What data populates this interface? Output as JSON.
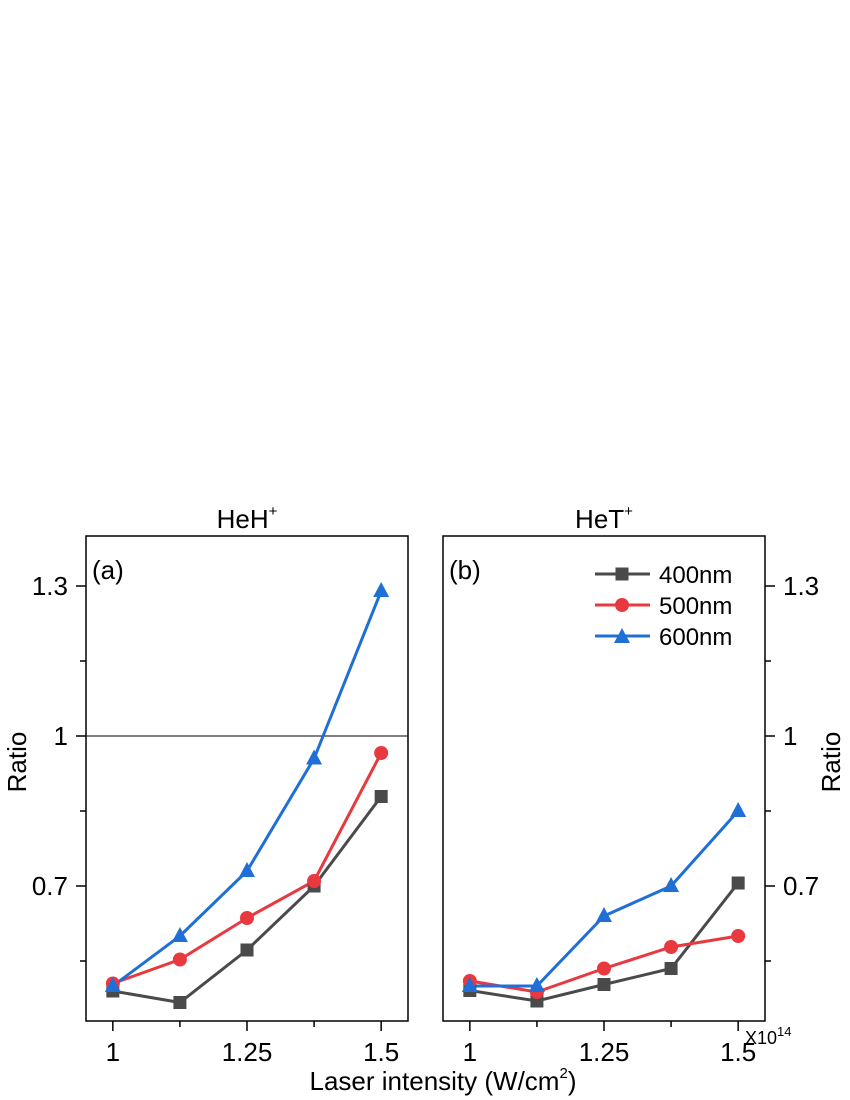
{
  "chart_data": [
    {
      "type": "line",
      "panel_label": "(a)",
      "title": "HeH",
      "title_sup": "+",
      "ylabel": "Ratio",
      "ylim": [
        0.43,
        1.4
      ],
      "xlim": [
        0.95,
        1.55
      ],
      "xticks": [
        1,
        1.25,
        1.5
      ],
      "xtick_labels": [
        "1",
        "1.25",
        "1.5"
      ],
      "yticks": [
        0.7,
        1,
        1.3
      ],
      "ytick_labels": [
        "0.7",
        "1",
        "1.3"
      ],
      "reference_line": 1,
      "x": [
        1,
        1.125,
        1.25,
        1.375,
        1.5
      ],
      "series": [
        {
          "name": "400nm",
          "color": "#4a4a4a",
          "marker": "square",
          "values": [
            0.49,
            0.467,
            0.572,
            0.7,
            0.879
          ]
        },
        {
          "name": "500nm",
          "color": "#e8393f",
          "marker": "circle",
          "values": [
            0.505,
            0.553,
            0.636,
            0.71,
            0.966
          ]
        },
        {
          "name": "600nm",
          "color": "#1f6fd6",
          "marker": "triangle",
          "values": [
            0.5,
            0.6,
            0.73,
            0.955,
            1.29
          ]
        }
      ]
    },
    {
      "type": "line",
      "panel_label": "(b)",
      "title": "HeT",
      "title_sup": "+",
      "ylabel": "Ratio",
      "ylim": [
        0.43,
        1.4
      ],
      "xlim": [
        0.95,
        1.55
      ],
      "xticks": [
        1,
        1.25,
        1.5
      ],
      "xtick_labels": [
        "1",
        "1.25",
        "1.5"
      ],
      "yticks": [
        0.7,
        1,
        1.3
      ],
      "ytick_labels": [
        "0.7",
        "1",
        "1.3"
      ],
      "x": [
        1,
        1.125,
        1.25,
        1.375,
        1.5
      ],
      "series": [
        {
          "name": "400nm",
          "color": "#4a4a4a",
          "marker": "square",
          "values": [
            0.491,
            0.47,
            0.503,
            0.535,
            0.706
          ]
        },
        {
          "name": "500nm",
          "color": "#e8393f",
          "marker": "circle",
          "values": [
            0.51,
            0.488,
            0.535,
            0.578,
            0.6
          ]
        },
        {
          "name": "600nm",
          "color": "#1f6fd6",
          "marker": "triangle",
          "values": [
            0.5,
            0.5,
            0.64,
            0.7,
            0.85
          ]
        }
      ],
      "legend": [
        "400nm",
        "500nm",
        "600nm"
      ],
      "legend_position": "top-right"
    }
  ],
  "xlabel": "Laser intensity (W/cm",
  "xlabel_sup": "2",
  "xlabel_close": ")",
  "sci_prefix": "X10",
  "sci_exp": "14"
}
